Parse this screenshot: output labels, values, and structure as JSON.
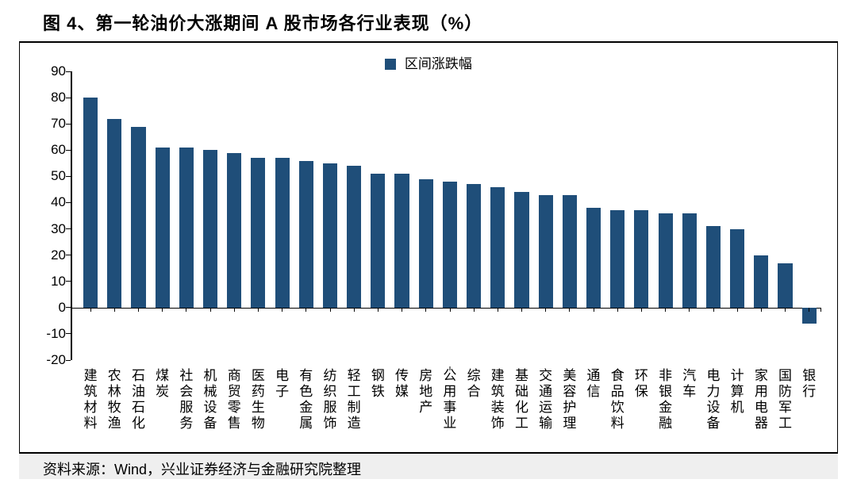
{
  "title": "图 4、第一轮油价大涨期间 A 股市场各行业表现（%）",
  "source": "资料来源：Wind，兴业证券经济与金融研究院整理",
  "chart": {
    "type": "bar",
    "legend_label": "区间涨跌幅",
    "bar_color": "#1f4e79",
    "axis_color": "#000000",
    "background_color": "#ffffff",
    "ylim_min": -20,
    "ylim_max": 90,
    "ytick_step": 10,
    "yticks": [
      -20,
      -10,
      0,
      10,
      20,
      30,
      40,
      50,
      60,
      70,
      80,
      90
    ],
    "bar_width_ratio": 0.6,
    "label_fontsize": 17,
    "title_fontsize": 22,
    "categories": [
      "建筑材料",
      "农林牧渔",
      "石油石化",
      "煤炭",
      "社会服务",
      "机械设备",
      "商贸零售",
      "医药生物",
      "电子",
      "有色金属",
      "纺织服饰",
      "轻工制造",
      "钢铁",
      "传媒",
      "房地产",
      "公用事业",
      "综合",
      "建筑装饰",
      "基础化工",
      "交通运输",
      "美容护理",
      "通信",
      "食品饮料",
      "环保",
      "非银金融",
      "汽车",
      "电力设备",
      "计算机",
      "家用电器",
      "国防军工",
      "银行"
    ],
    "values": [
      80,
      72,
      69,
      61,
      61,
      60,
      59,
      57,
      57,
      56,
      55,
      54,
      51,
      51,
      49,
      48,
      47,
      46,
      44,
      43,
      43,
      38,
      37,
      37,
      36,
      36,
      31,
      30,
      20,
      17,
      -6
    ]
  }
}
